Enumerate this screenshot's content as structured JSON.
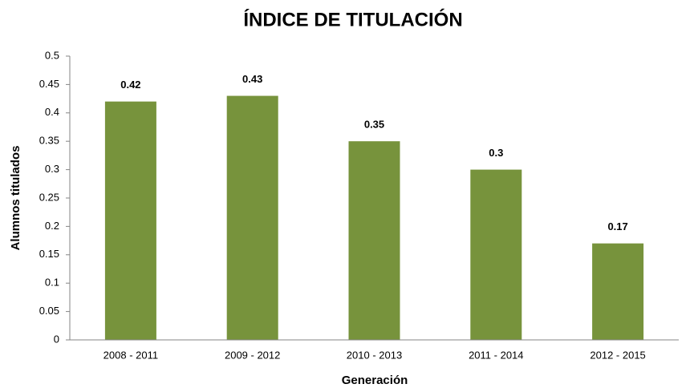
{
  "chart_data": {
    "type": "bar",
    "title": "ÍNDICE DE TITULACIÓN",
    "x_label": "Generación",
    "y_label": "Alumnos titulados",
    "categories": [
      "2008 - 2011",
      "2009 - 2012",
      "2010 - 2013",
      "2011 - 2014",
      "2012 - 2015"
    ],
    "values": [
      0.42,
      0.43,
      0.35,
      0.3,
      0.17
    ],
    "color": "#77933c",
    "ylim": [
      0,
      0.5
    ],
    "yticks": [
      0,
      0.05,
      0.1,
      0.15,
      0.2,
      0.25,
      0.3,
      0.35,
      0.4,
      0.45,
      0.5
    ],
    "grid": false
  }
}
